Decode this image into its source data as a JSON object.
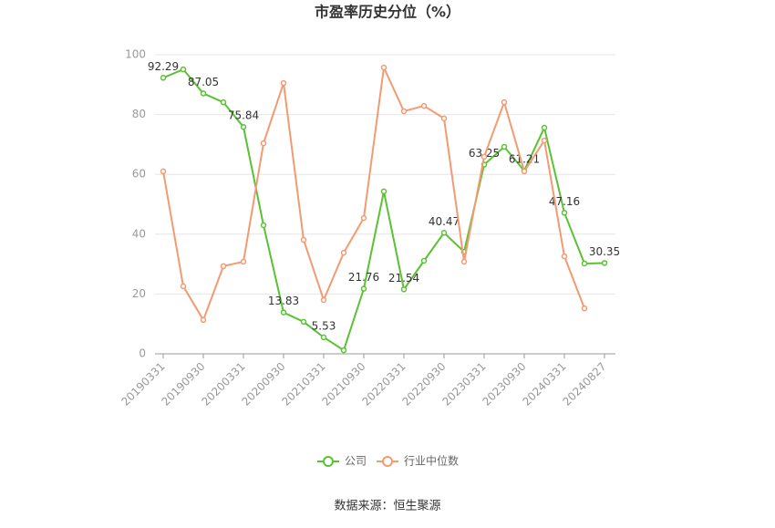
{
  "chart_data": {
    "type": "line",
    "title": "市盈率历史分位（%）",
    "categories": [
      "20190331",
      null,
      "20190930",
      null,
      "20200331",
      null,
      "20200930",
      null,
      "20210331",
      null,
      "20210930",
      null,
      "20220331",
      null,
      "20220930",
      null,
      "20230331",
      null,
      "20230930",
      null,
      "20240331",
      null,
      "20240827"
    ],
    "series": [
      {
        "name": "公司",
        "color": "#5ac134",
        "values": [
          92.29,
          95.1,
          87.05,
          84.1,
          75.84,
          43.0,
          13.83,
          10.7,
          5.53,
          1.2,
          21.76,
          54.3,
          21.54,
          31.1,
          40.47,
          34.1,
          63.25,
          69.2,
          61.21,
          75.6,
          47.16,
          30.2,
          30.35
        ],
        "value_labels": [
          "92.29",
          null,
          "87.05",
          null,
          "75.84",
          null,
          "13.83",
          null,
          "5.53",
          null,
          "21.76",
          null,
          "21.54",
          null,
          "40.47",
          null,
          "63.25",
          null,
          "61.21",
          null,
          "47.16",
          null,
          "30.35"
        ]
      },
      {
        "name": "行业中位数",
        "color": "#f29a72",
        "values": [
          61.0,
          22.6,
          11.3,
          29.3,
          30.8,
          70.4,
          90.5,
          38.1,
          18.0,
          33.8,
          45.4,
          95.7,
          81.1,
          82.9,
          78.7,
          30.8,
          65.9,
          84.1,
          61.0,
          71.3,
          32.6,
          15.2,
          null
        ]
      }
    ],
    "ylim": [
      0,
      100
    ],
    "yticks": [
      0,
      20,
      40,
      60,
      80,
      100
    ],
    "grid": true,
    "legend": "bottom",
    "source": "数据来源：恒生聚源"
  }
}
